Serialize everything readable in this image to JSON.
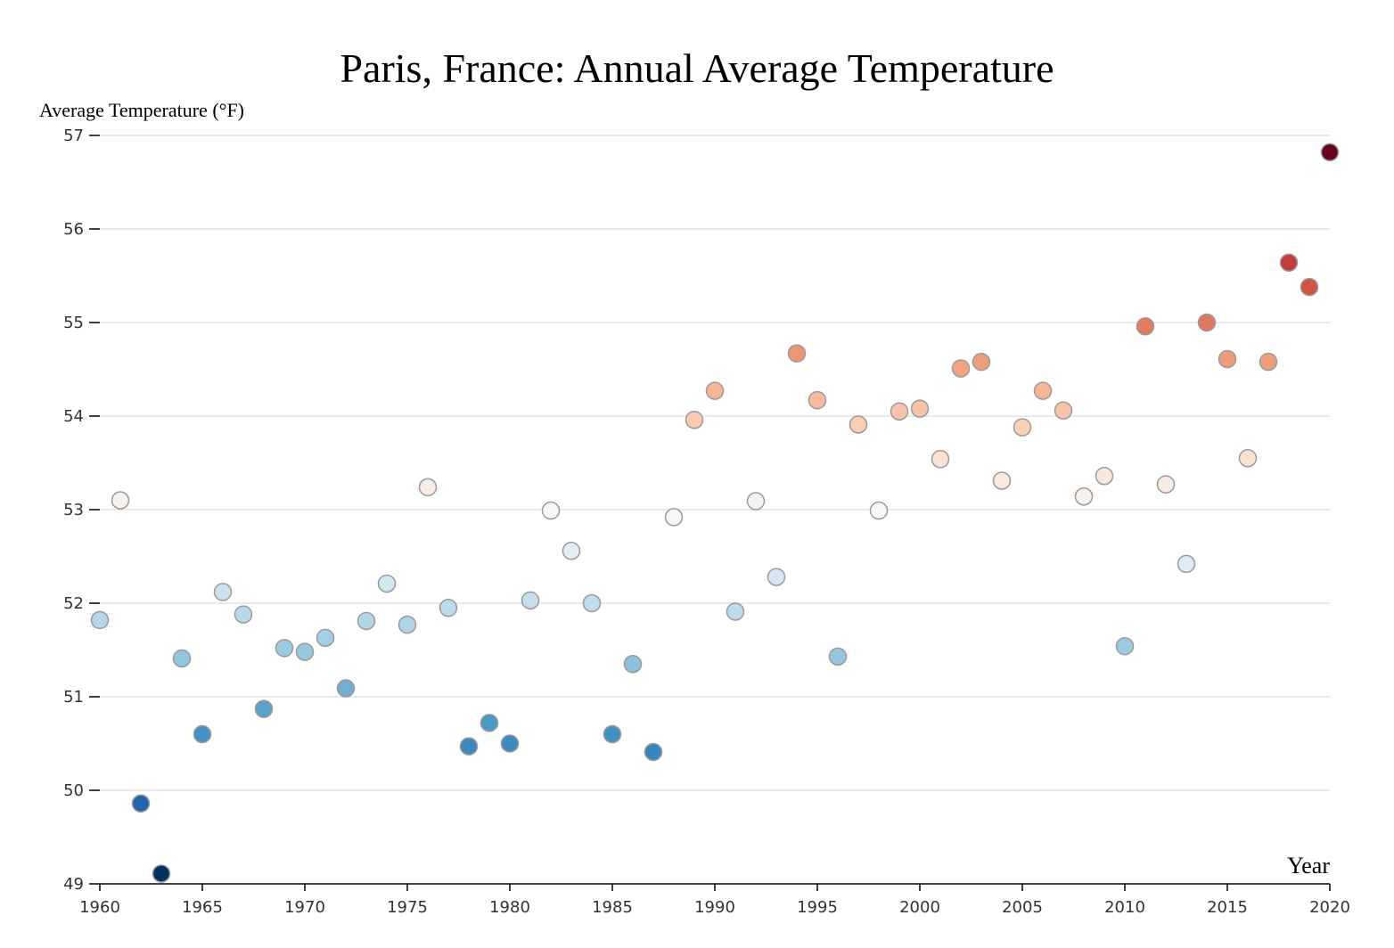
{
  "chart_data": {
    "type": "scatter",
    "title": "Paris, France: Annual Average Temperature",
    "xlabel": "Year",
    "ylabel": "Average Temperature (°F)",
    "xlim": [
      1960,
      2020
    ],
    "ylim": [
      49,
      57
    ],
    "xticks": [
      1960,
      1965,
      1970,
      1975,
      1980,
      1985,
      1990,
      1995,
      2000,
      2005,
      2010,
      2015,
      2020
    ],
    "yticks": [
      49,
      50,
      51,
      52,
      53,
      54,
      55,
      56,
      57
    ],
    "grid": "horizontal",
    "color_scale": "diverging red-blue by temperature",
    "color_domain": [
      49.1,
      56.8
    ],
    "x": [
      1960,
      1961,
      1962,
      1963,
      1964,
      1965,
      1966,
      1967,
      1968,
      1969,
      1970,
      1971,
      1972,
      1973,
      1974,
      1975,
      1976,
      1977,
      1978,
      1979,
      1980,
      1981,
      1982,
      1983,
      1984,
      1985,
      1986,
      1987,
      1988,
      1989,
      1990,
      1991,
      1992,
      1993,
      1994,
      1995,
      1996,
      1997,
      1998,
      1999,
      2000,
      2001,
      2002,
      2003,
      2004,
      2005,
      2006,
      2007,
      2008,
      2009,
      2010,
      2011,
      2012,
      2013,
      2014,
      2015,
      2016,
      2017,
      2018,
      2019,
      2020
    ],
    "y": [
      51.82,
      53.1,
      49.86,
      49.11,
      51.41,
      50.6,
      52.12,
      51.88,
      50.87,
      51.52,
      51.48,
      51.63,
      51.09,
      51.81,
      52.21,
      51.77,
      53.24,
      51.95,
      50.47,
      50.72,
      50.5,
      52.03,
      52.99,
      52.56,
      52.0,
      50.6,
      51.35,
      50.41,
      52.92,
      53.96,
      54.27,
      51.91,
      53.09,
      52.28,
      54.67,
      54.17,
      51.43,
      53.91,
      52.99,
      54.05,
      54.08,
      53.54,
      54.51,
      54.58,
      53.31,
      53.88,
      54.27,
      54.06,
      53.14,
      53.36,
      51.54,
      54.96,
      53.27,
      52.42,
      55.0,
      54.61,
      53.55,
      54.58,
      55.64,
      55.38,
      56.82
    ]
  }
}
